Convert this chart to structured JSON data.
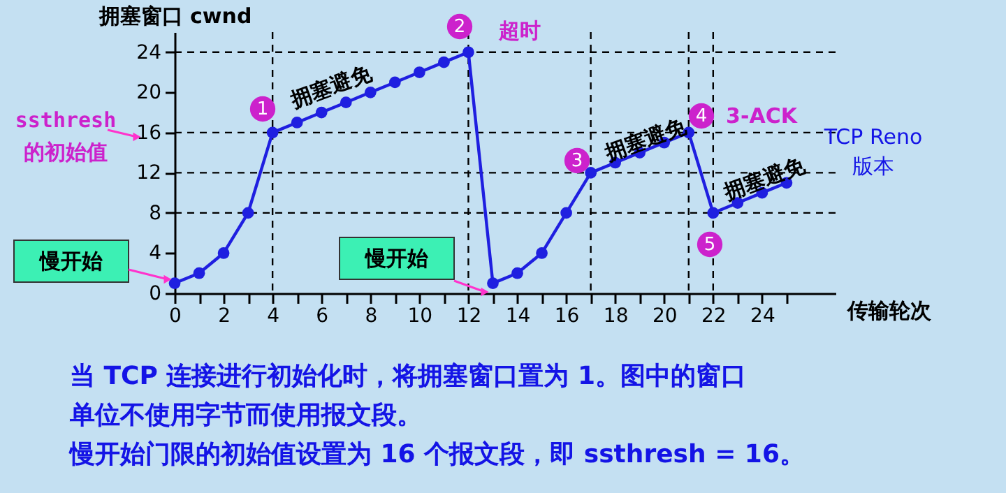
{
  "chart_data": {
    "type": "line",
    "xlabel": "传输轮次",
    "ylabel": "拥塞窗口   cwnd",
    "x": [
      0,
      1,
      2,
      3,
      4,
      5,
      6,
      7,
      8,
      9,
      10,
      11,
      12,
      13,
      14,
      15,
      16,
      17,
      18,
      19,
      20,
      21,
      22,
      23,
      24,
      25
    ],
    "series": [
      {
        "color": "#1f1fe0",
        "values": [
          1,
          2,
          4,
          8,
          16,
          17,
          18,
          19,
          20,
          21,
          22,
          23,
          24,
          1,
          2,
          4,
          8,
          12,
          13,
          14,
          15,
          16,
          8,
          9,
          10,
          11
        ]
      }
    ],
    "xlim": [
      0,
      27
    ],
    "ylim": [
      0,
      26
    ],
    "xticks": [
      0,
      {
        "value": 1,
        "label": null
      },
      2,
      {
        "value": 3,
        "label": null
      },
      4,
      {
        "value": 5,
        "label": null
      },
      6,
      {
        "value": 7,
        "label": null
      },
      8,
      {
        "value": 9,
        "label": null
      },
      10,
      {
        "value": 11,
        "label": null
      },
      12,
      {
        "value": 13,
        "label": null
      },
      14,
      {
        "value": 15,
        "label": null
      },
      16,
      {
        "value": 17,
        "label": null
      },
      18,
      {
        "value": 19,
        "label": null
      },
      20,
      {
        "value": 21,
        "label": null
      },
      22,
      {
        "value": 23,
        "label": null
      },
      24,
      {
        "value": 25,
        "label": null
      }
    ],
    "yticks": [
      0,
      4,
      8,
      12,
      16,
      20,
      24
    ],
    "grid": false,
    "marker": "circle",
    "line_style": "solid",
    "ref_lines": [
      {
        "axis": "y",
        "value": 24,
        "line_style": "dashed",
        "color": "#000000"
      },
      {
        "axis": "y",
        "value": 16,
        "line_style": "dashed",
        "color": "#000000"
      },
      {
        "axis": "y",
        "value": 12,
        "line_style": "dashed",
        "color": "#000000"
      },
      {
        "axis": "y",
        "value": 8,
        "line_style": "dashed",
        "color": "#000000"
      },
      {
        "axis": "x",
        "value": 4,
        "line_style": "dashed",
        "color": "#000000"
      },
      {
        "axis": "x",
        "value": 12,
        "line_style": "dashed",
        "color": "#000000"
      },
      {
        "axis": "x",
        "value": 17,
        "line_style": "dashed",
        "color": "#000000"
      },
      {
        "axis": "x",
        "value": 21,
        "line_style": "dashed",
        "color": "#000000"
      },
      {
        "axis": "x",
        "value": 22,
        "line_style": "dashed",
        "color": "#000000"
      }
    ],
    "annotations": [
      "拥塞避免",
      "1",
      "2",
      "超时",
      "3",
      "拥塞避免",
      "4",
      "3-ACK",
      "5",
      "拥塞避免",
      "TCP Reno",
      "版本",
      "ssthresh",
      "的初始值",
      "慢开始",
      "慢开始",
      "当 TCP 连接进行初始化时，将拥塞窗口置为 1。图中的窗口",
      "单位不使用字节而使用报文段。",
      "慢开始门限的初始值设置为 16 个报文段，即 ssthresh = 16。"
    ]
  }
}
